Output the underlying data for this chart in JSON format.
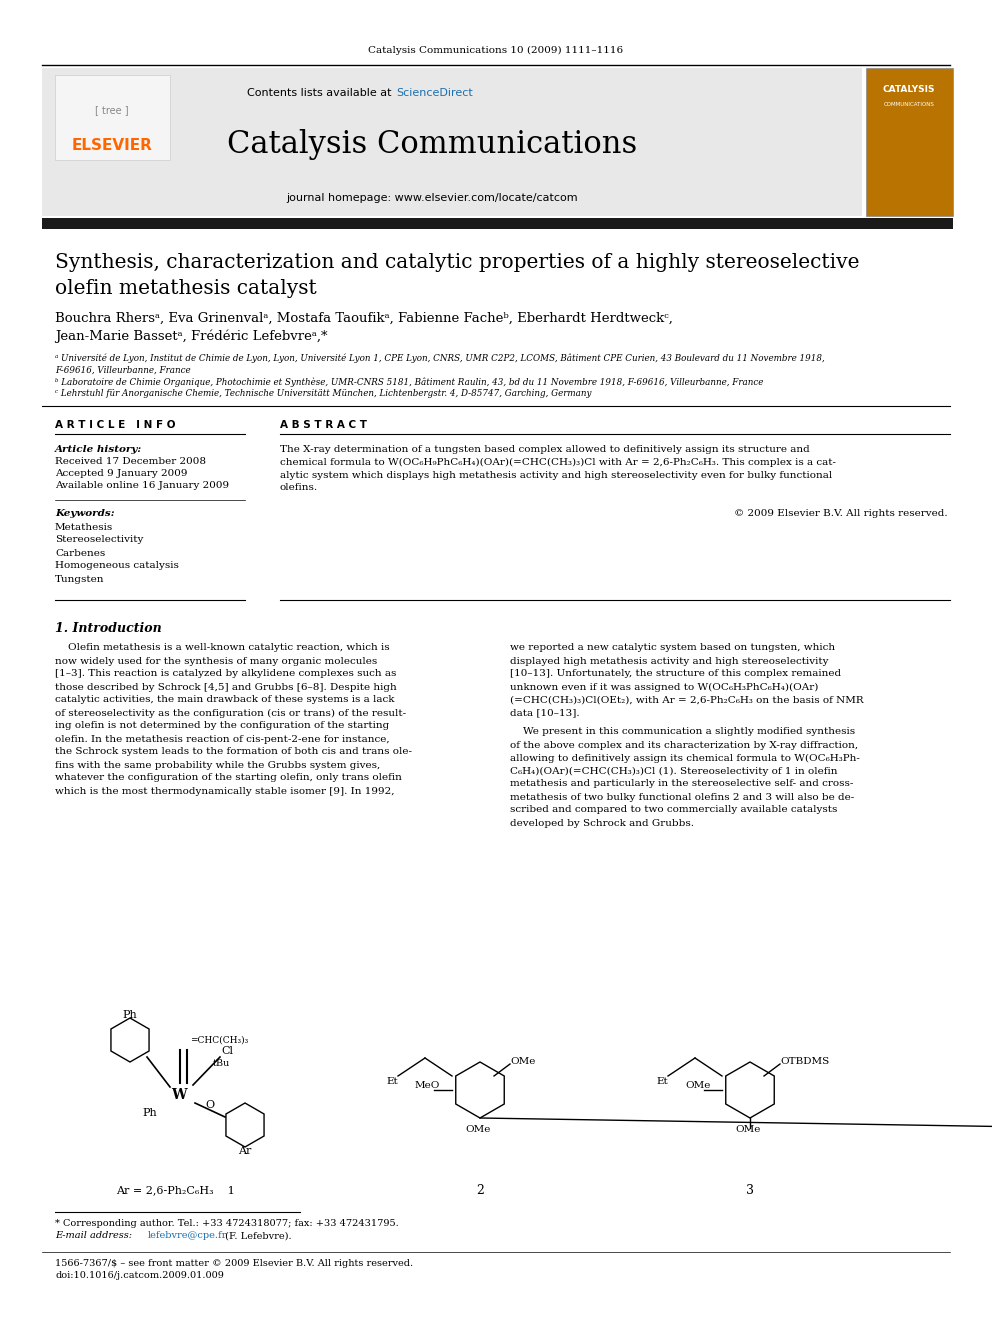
{
  "page_bg": "#ffffff",
  "header_journal_line": "Catalysis Communications 10 (2009) 1111–1116",
  "header_bg": "#e8e8e8",
  "elsevier_color": "#ff6600",
  "sciencedirect_color": "#1a6faf",
  "journal_title": "Catalysis Communications",
  "journal_homepage": "journal homepage: www.elsevier.com/locate/catcom",
  "contents_text": "Contents lists available at ScienceDirect",
  "thick_bar_color": "#1a1a1a",
  "article_title_line1": "Synthesis, characterization and catalytic properties of a highly stereoselective",
  "article_title_line2": "olefin metathesis catalyst",
  "authors": "Bouchra Rhersᵃ, Eva Grinenvalᵃ, Mostafa Taoufikᵃ, Fabienne Facheᵇ, Eberhardt Herdtweckᶜ,",
  "authors2": "Jean-Marie Bassetᵃ, Frédéric Lefebvreᵃ,*",
  "affil_a": "ᵃ Université de Lyon, Institut de Chimie de Lyon, Lyon, Université Lyon 1, CPE Lyon, CNRS, UMR C2P2, LCOMS, Bâtiment CPE Curien, 43 Boulevard du 11 Novembre 1918,",
  "affil_a2": "F-69616, Villeurbanne, France",
  "affil_b": "ᵇ Laboratoire de Chimie Organique, Photochimie et Synthèse, UMR-CNRS 5181, Bâtiment Raulin, 43, bd du 11 Novembre 1918, F-69616, Villeurbanne, France",
  "affil_c": "ᶜ Lehrstuhl für Anorganische Chemie, Technische Universitätt München, Lichtenbergstr. 4, D-85747, Garching, Germany",
  "section_article_info": "A R T I C L E   I N F O",
  "section_abstract": "A B S T R A C T",
  "article_history_label": "Article history:",
  "received": "Received 17 December 2008",
  "accepted": "Accepted 9 January 2009",
  "available": "Available online 16 January 2009",
  "keywords_label": "Keywords:",
  "keywords": [
    "Metathesis",
    "Stereoselectivity",
    "Carbenes",
    "Homogeneous catalysis",
    "Tungsten"
  ],
  "abstract_lines": [
    "The X-ray determination of a tungsten based complex allowed to definitively assign its structure and",
    "chemical formula to W(OC₆H₉PhC₆H₄)(OAr)(=CHC(CH₃)₃)Cl with Ar = 2,6-Ph₂C₆H₃. This complex is a cat-",
    "alytic system which displays high metathesis activity and high stereoselectivity even for bulky functional",
    "olefins."
  ],
  "copyright": "© 2009 Elsevier B.V. All rights reserved.",
  "intro_heading": "1. Introduction",
  "intro_col1_lines": [
    "    Olefin metathesis is a well-known catalytic reaction, which is",
    "now widely used for the synthesis of many organic molecules",
    "[1–3]. This reaction is catalyzed by alkylidene complexes such as",
    "those described by Schrock [4,5] and Grubbs [6–8]. Despite high",
    "catalytic activities, the main drawback of these systems is a lack",
    "of stereoselectivity as the configuration (cis or trans) of the result-",
    "ing olefin is not determined by the configuration of the starting",
    "olefin. In the metathesis reaction of cis-pent-2-ene for instance,",
    "the Schrock system leads to the formation of both cis and trans ole-",
    "fins with the same probability while the Grubbs system gives,",
    "whatever the configuration of the starting olefin, only trans olefin",
    "which is the most thermodynamically stable isomer [9]. In 1992,"
  ],
  "intro_col2_lines_p1": [
    "we reported a new catalytic system based on tungsten, which",
    "displayed high metathesis activity and high stereoselectivity",
    "[10–13]. Unfortunately, the structure of this complex remained",
    "unknown even if it was assigned to W(OC₆H₃PhC₆H₄)(OAr)",
    "(=CHC(CH₃)₃)Cl(OEt₂), with Ar = 2,6-Ph₂C₆H₃ on the basis of NMR",
    "data [10–13]."
  ],
  "intro_col2_lines_p2": [
    "    We present in this communication a slightly modified synthesis",
    "of the above complex and its characterization by X-ray diffraction,",
    "allowing to definitively assign its chemical formula to W(OC₆H₃Ph-",
    "C₆H₄)(OAr)(=CHC(CH₃)₃)Cl (1). Stereoselectivity of 1 in olefin",
    "metathesis and particularly in the stereoselective self- and cross-",
    "metathesis of two bulky functional olefins 2 and 3 will also be de-",
    "scribed and compared to two commercially available catalysts",
    "developed by Schrock and Grubbs."
  ],
  "mol1_label": "Ar = 2,6-Ph₂C₆H₃    1",
  "mol2_label": "2",
  "mol3_label": "3",
  "footnote_star": "* Corresponding author. Tel.: +33 4724318077; fax: +33 472431795.",
  "footnote_email_label": "E-mail address:",
  "footnote_email": "lefebvre@cpe.fr",
  "footnote_email_rest": " (F. Lefebvre).",
  "footer_issn": "1566-7367/$ – see front matter © 2009 Elsevier B.V. All rights reserved.",
  "footer_doi": "doi:10.1016/j.catcom.2009.01.009"
}
